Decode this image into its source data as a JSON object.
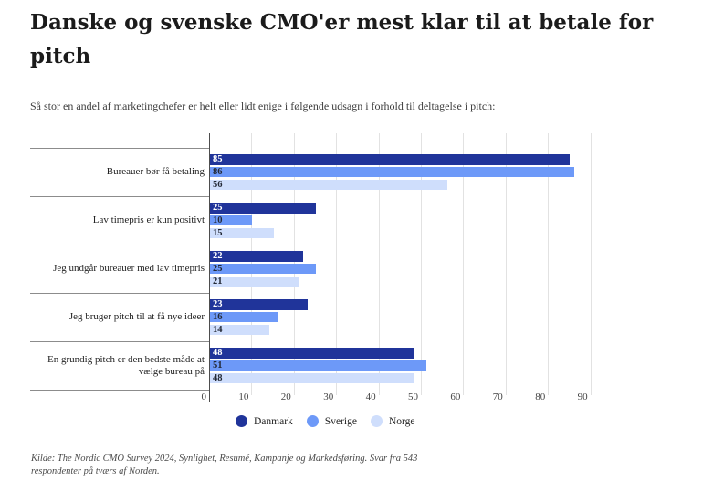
{
  "chart_data": {
    "type": "bar",
    "orientation": "horizontal",
    "title": "Danske og svenske CMO'er mest klar til at betale for pitch",
    "subtitle": "Så stor en andel af marketingchefer er helt eller lidt enige i følgende udsagn i forhold til deltagelse i pitch:",
    "categories": [
      "Bureauer bør få betaling",
      "Lav timepris er kun positivt",
      "Jeg undgår bureauer med lav timepris",
      "Jeg bruger pitch til at få nye ideer",
      "En grundig pitch er den bedste måde at vælge bureau på"
    ],
    "series": [
      {
        "name": "Danmark",
        "color": "#20349A",
        "value_label_color": "#FFFFFF",
        "values": [
          85,
          25,
          22,
          23,
          48
        ]
      },
      {
        "name": "Sverige",
        "color": "#6D99F8",
        "value_label_color": "#232936",
        "values": [
          86,
          10,
          25,
          16,
          51
        ]
      },
      {
        "name": "Norge",
        "color": "#CFDEFC",
        "value_label_color": "#232936",
        "values": [
          56,
          15,
          21,
          14,
          48
        ]
      }
    ],
    "x_ticks": [
      0,
      10,
      20,
      30,
      40,
      50,
      60,
      70,
      80,
      90
    ],
    "xlim": [
      0,
      97
    ],
    "grid": true,
    "value_labels": "inside-start",
    "legend_position": "bottom",
    "source": "Kilde: The Nordic CMO Survey 2024, Synlighet, Resumé, Kampanje og Markedsføring. Svar fra 543 respondenter på tværs af Norden."
  }
}
